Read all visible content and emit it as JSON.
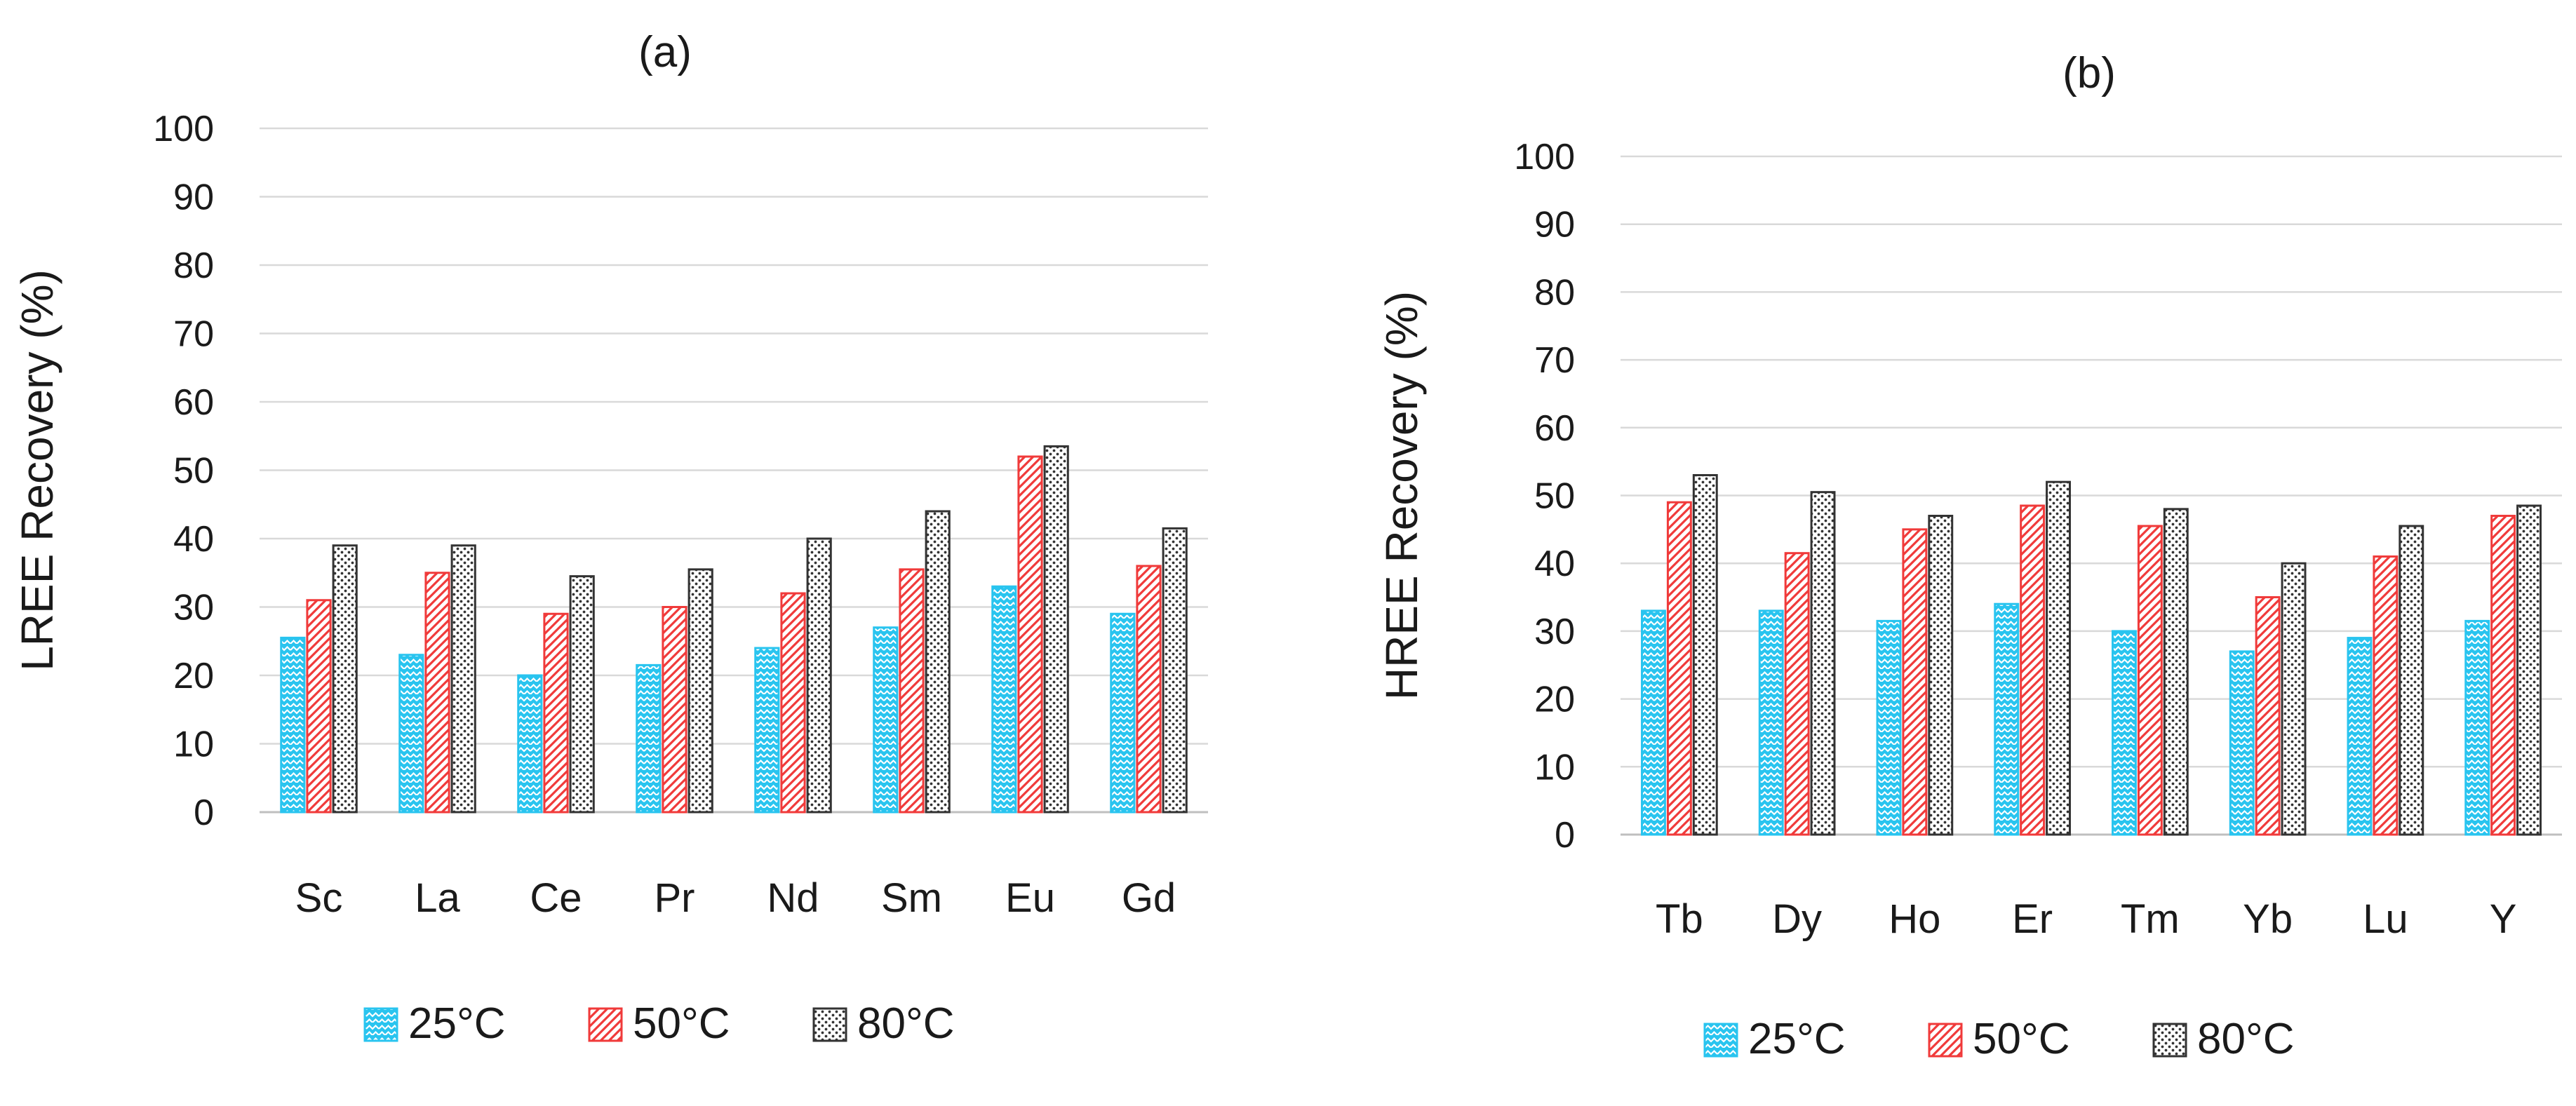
{
  "chart_data": [
    {
      "type": "bar",
      "title": "(a)",
      "xlabel": "",
      "ylabel": "LREE Recovery (%)",
      "ylim": [
        0,
        100
      ],
      "yticks": [
        0,
        10,
        20,
        30,
        40,
        50,
        60,
        70,
        80,
        90,
        100
      ],
      "grid": true,
      "legend": "bottom",
      "categories": [
        "Sc",
        "La",
        "Ce",
        "Pr",
        "Nd",
        "Sm",
        "Eu",
        "Gd"
      ],
      "series": [
        {
          "name": "25°C",
          "values": [
            25.5,
            23,
            20,
            21.5,
            24,
            27,
            33,
            29
          ]
        },
        {
          "name": "50°C",
          "values": [
            31,
            35,
            29,
            30,
            32,
            35.5,
            52,
            36
          ]
        },
        {
          "name": "80°C",
          "values": [
            39,
            39,
            34.5,
            35.5,
            40,
            44,
            53.5,
            41.5
          ]
        }
      ]
    },
    {
      "type": "bar",
      "title": "(b)",
      "xlabel": "",
      "ylabel": "HREE Recovery (%)",
      "ylim": [
        0,
        100
      ],
      "yticks": [
        0,
        10,
        20,
        30,
        40,
        50,
        60,
        70,
        80,
        90,
        100
      ],
      "grid": true,
      "legend": "bottom",
      "categories": [
        "Tb",
        "Dy",
        "Ho",
        "Er",
        "Tm",
        "Yb",
        "Lu",
        "Y"
      ],
      "series": [
        {
          "name": "25°C",
          "values": [
            33,
            33,
            31.5,
            34,
            30,
            27,
            29,
            31.5
          ]
        },
        {
          "name": "50°C",
          "values": [
            49,
            41.5,
            45,
            48.5,
            45.5,
            35,
            41,
            47
          ]
        },
        {
          "name": "80°C",
          "values": [
            53,
            50.5,
            47,
            52,
            48,
            40,
            45.5,
            48.5
          ]
        }
      ]
    }
  ],
  "colors": {
    "series": [
      "#29c4ef",
      "#f03a3a",
      "#333333"
    ],
    "grid": "#d9d9d9",
    "axis": "#bfbfbf"
  }
}
